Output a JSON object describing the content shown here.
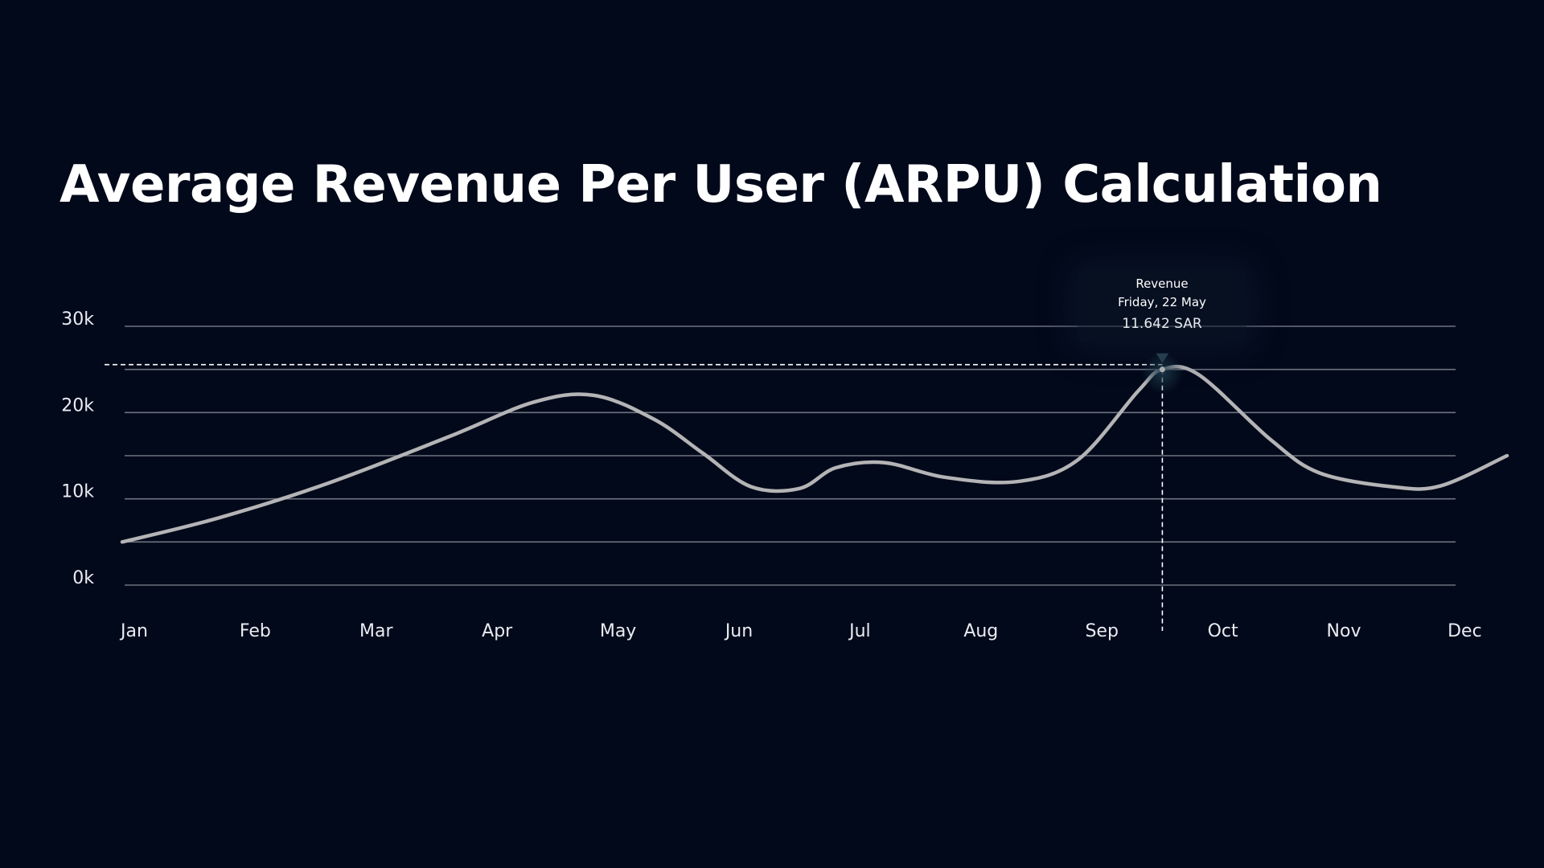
{
  "title": "Average Revenue Per User (ARPU) Calculation",
  "tooltip": {
    "series": "Revenue",
    "date": "Friday, 22 May",
    "value": "11.642 SAR"
  },
  "colors": {
    "background": "#02091a",
    "line": "#b4b4b6",
    "grid": "#6e7380",
    "text": "#ffffff"
  },
  "chart_data": {
    "type": "line",
    "title": "Average Revenue Per User (ARPU) Calculation",
    "xlabel": "",
    "ylabel": "",
    "categories": [
      "Jan",
      "Feb",
      "Mar",
      "Apr",
      "May",
      "Jun",
      "Jul",
      "Aug",
      "Sep",
      "Oct",
      "Nov",
      "Dec"
    ],
    "y_ticks": [
      {
        "value": 0,
        "label": "0k"
      },
      {
        "value": 10000,
        "label": "10k"
      },
      {
        "value": 20000,
        "label": "20k"
      },
      {
        "value": 30000,
        "label": "30k"
      }
    ],
    "ylim": [
      0,
      30000
    ],
    "grid": true,
    "gridline_step": 5000,
    "series": [
      {
        "name": "Revenue",
        "points": [
          {
            "x": -0.1,
            "y": 5000
          },
          {
            "x": 0.7,
            "y": 7800
          },
          {
            "x": 1.6,
            "y": 11800
          },
          {
            "x": 2.6,
            "y": 17200
          },
          {
            "x": 3.3,
            "y": 21200
          },
          {
            "x": 3.8,
            "y": 22000
          },
          {
            "x": 4.3,
            "y": 19200
          },
          {
            "x": 4.7,
            "y": 15300
          },
          {
            "x": 5.1,
            "y": 11400
          },
          {
            "x": 5.5,
            "y": 11200
          },
          {
            "x": 5.8,
            "y": 13600
          },
          {
            "x": 6.2,
            "y": 14200
          },
          {
            "x": 6.7,
            "y": 12500
          },
          {
            "x": 7.3,
            "y": 12000
          },
          {
            "x": 7.8,
            "y": 14500
          },
          {
            "x": 8.3,
            "y": 22500
          },
          {
            "x": 8.5,
            "y": 25000
          },
          {
            "x": 8.8,
            "y": 24400
          },
          {
            "x": 9.4,
            "y": 16800
          },
          {
            "x": 9.8,
            "y": 13000
          },
          {
            "x": 10.4,
            "y": 11400
          },
          {
            "x": 10.8,
            "y": 11500
          },
          {
            "x": 11.35,
            "y": 15000
          }
        ]
      }
    ],
    "highlight": {
      "x": 8.5,
      "y": 25000
    }
  }
}
